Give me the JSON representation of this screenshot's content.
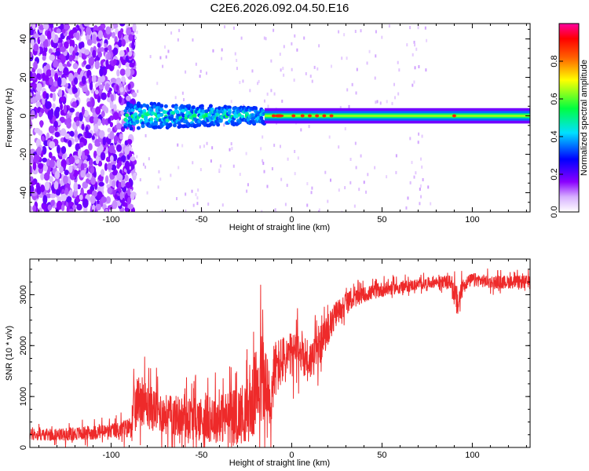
{
  "title": "C2E6.2026.092.04.50.E16",
  "chart_data": [
    {
      "type": "heatmap",
      "xlabel": "Height of straight line (km)",
      "ylabel": "Frequency (Hz)",
      "xlim": [
        -145,
        132
      ],
      "ylim": [
        -50,
        48
      ],
      "x_ticks": [
        -100,
        -50,
        0,
        50,
        100
      ],
      "y_ticks": [
        -40,
        -20,
        0,
        20,
        40
      ],
      "colorbar": {
        "label": "Normalized spectral amplitude",
        "range": [
          0,
          1
        ],
        "ticks": [
          "0.0",
          "0.2",
          "0.4",
          "0.6",
          "0.8"
        ],
        "tick_values": [
          0,
          0.2,
          0.4,
          0.6,
          0.8
        ],
        "colors": [
          "#ffffff",
          "#8a00ff",
          "#0000ff",
          "#00e0ff",
          "#00ff40",
          "#ffff00",
          "#ff0000",
          "#ff00a0"
        ]
      },
      "regions": [
        {
          "x_range": [
            -145,
            -92
          ],
          "f_range": [
            -50,
            48
          ],
          "amplitude": 0.1,
          "description": "broadband noise"
        },
        {
          "x_range": [
            -92,
            -15
          ],
          "f_range": [
            -8,
            8
          ],
          "amplitude": 0.4
        },
        {
          "x_range": [
            -15,
            132
          ],
          "f_range": [
            -3,
            3
          ],
          "amplitude": 0.55
        }
      ]
    },
    {
      "type": "line",
      "xlabel": "Height of straight line (km)",
      "ylabel": "SNR (10 * v/v)",
      "xlim": [
        -145,
        132
      ],
      "ylim": [
        0,
        3700
      ],
      "x_ticks": [
        -100,
        -50,
        0,
        50,
        100
      ],
      "y_ticks": [
        0,
        1000,
        2000,
        3000
      ],
      "color": "#ee2a2a",
      "series": [
        {
          "x": [
            -145,
            -130,
            -115,
            -100,
            -90,
            -87,
            -84,
            -80,
            -70,
            -60,
            -50,
            -40,
            -30,
            -22,
            -18,
            -15,
            -12,
            -10,
            -5,
            0,
            5,
            10,
            15,
            20,
            25,
            30,
            40,
            50,
            60,
            70,
            80,
            88,
            92,
            95,
            100,
            110,
            120,
            132
          ],
          "y": [
            250,
            250,
            280,
            320,
            380,
            700,
            1050,
            800,
            650,
            600,
            560,
            580,
            620,
            800,
            1400,
            1250,
            600,
            1500,
            1700,
            1800,
            1900,
            1700,
            1950,
            2300,
            2650,
            2850,
            3000,
            3100,
            3150,
            3200,
            3250,
            3250,
            2800,
            3200,
            3300,
            3250,
            3250,
            3250
          ],
          "noise_amplitude": [
            120,
            120,
            140,
            150,
            200,
            500,
            500,
            450,
            400,
            420,
            450,
            500,
            550,
            700,
            1000,
            1000,
            900,
            600,
            500,
            450,
            450,
            400,
            380,
            300,
            250,
            200,
            150,
            150,
            120,
            110,
            110,
            130,
            350,
            130,
            130,
            130,
            130,
            130
          ]
        }
      ]
    }
  ]
}
